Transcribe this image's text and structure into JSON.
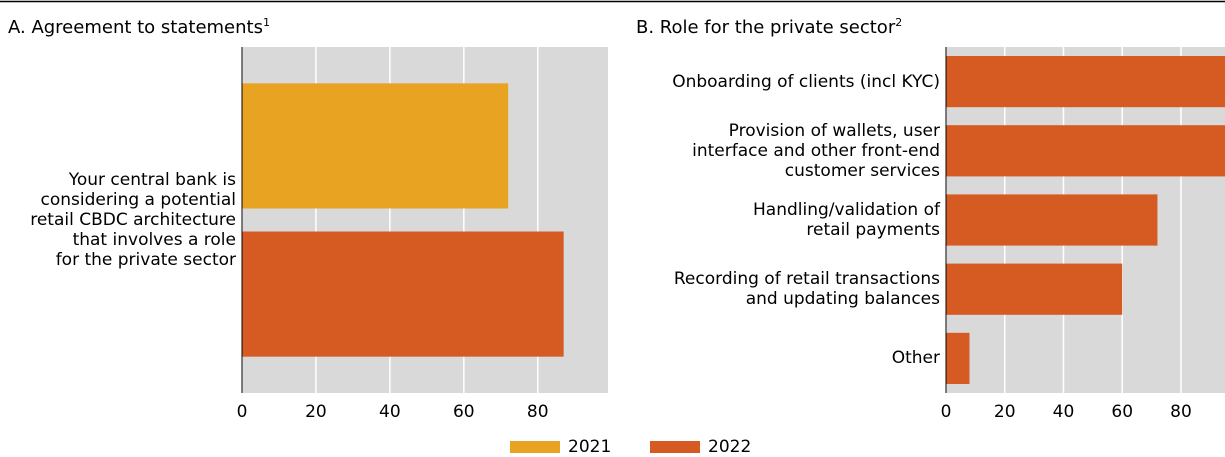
{
  "chart_data": [
    {
      "type": "hbar",
      "title": "A. Agreement to statements",
      "title_note": "1",
      "categories": [
        "Your central bank is\nconsidering a potential\nretail CBDC architecture\nthat involves a role\nfor the private sector"
      ],
      "series": [
        {
          "name": "2021",
          "color": "#e8a323",
          "values": [
            72
          ]
        },
        {
          "name": "2022",
          "color": "#d65b23",
          "values": [
            87
          ]
        }
      ],
      "xlim": [
        0,
        99
      ],
      "xticks": [
        0,
        20,
        40,
        60,
        80
      ],
      "grid": true
    },
    {
      "type": "hbar",
      "title": "B. Role for the private sector",
      "title_note": "2",
      "categories": [
        "Onboarding of clients (incl KYC)",
        "Provision of wallets, user\ninterface and other front-end\ncustomer services",
        "Handling/validation of\nretail payments",
        "Recording of retail transactions\nand updating balances",
        "Other"
      ],
      "values": [
        95,
        95,
        72,
        60,
        8
      ],
      "color": "#d65b23",
      "xlim": [
        0,
        95
      ],
      "xticks": [
        0,
        20,
        40,
        60,
        80
      ],
      "grid": true
    }
  ]
}
